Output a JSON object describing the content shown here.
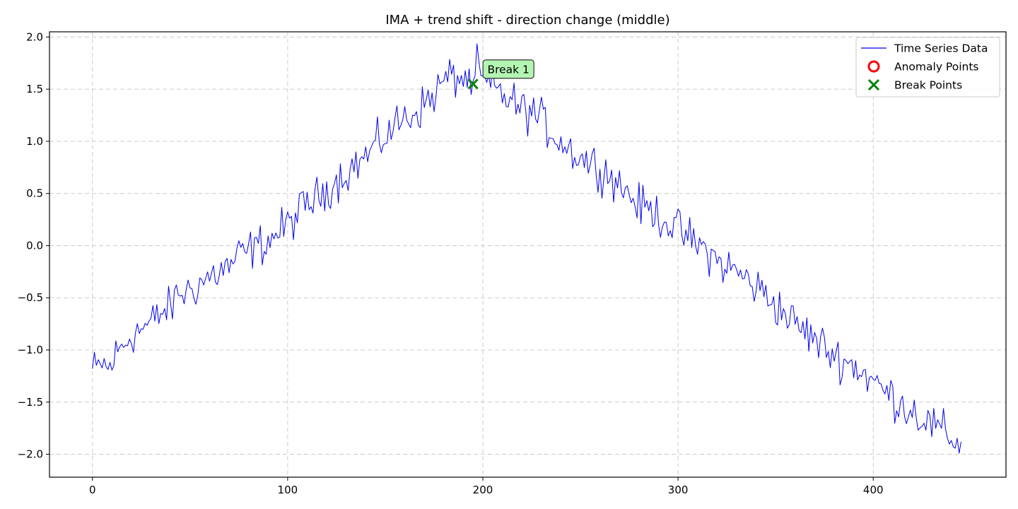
{
  "chart_data": {
    "type": "line",
    "title": "IMA + trend shift - direction change (middle)",
    "xlabel": "",
    "ylabel": "",
    "xlim": [
      -22,
      468
    ],
    "ylim": [
      -2.22,
      2.05
    ],
    "xticks": [
      0,
      100,
      200,
      300,
      400
    ],
    "yticks": [
      -2.0,
      -1.5,
      -1.0,
      -0.5,
      0.0,
      0.5,
      1.0,
      1.5,
      2.0
    ],
    "ytick_labels": [
      "−2.0",
      "−1.5",
      "−1.0",
      "−0.5",
      "0.0",
      "0.5",
      "1.0",
      "1.5",
      "2.0"
    ],
    "grid": true,
    "legend_position": "top-right",
    "colors": {
      "series": "#0000ee",
      "anomaly": "#ff0000",
      "break": "#008000",
      "annotation_fill": "#b3f5b3",
      "grid": "#cccccc"
    },
    "series": [
      {
        "name": "Time Series Data",
        "anchors_x": [
          0,
          2,
          5,
          8,
          12,
          16,
          20,
          25,
          30,
          35,
          40,
          44,
          48,
          52,
          56,
          60,
          65,
          70,
          75,
          80,
          85,
          90,
          95,
          100,
          105,
          110,
          115,
          120,
          125,
          130,
          135,
          140,
          145,
          150,
          155,
          160,
          165,
          170,
          175,
          180,
          185,
          190,
          195,
          197,
          200,
          205,
          210,
          215,
          220,
          225,
          230,
          235,
          240,
          245,
          250,
          255,
          260,
          265,
          270,
          275,
          280,
          285,
          290,
          295,
          300,
          305,
          310,
          315,
          320,
          325,
          330,
          335,
          340,
          344,
          348,
          352,
          356,
          360,
          365,
          370,
          375,
          380,
          385,
          390,
          395,
          400,
          405,
          410,
          415,
          420,
          425,
          430,
          435,
          440,
          445
        ],
        "anchors_y": [
          -1.18,
          -1.2,
          -1.12,
          -1.2,
          -1.05,
          -0.95,
          -0.85,
          -0.8,
          -0.75,
          -0.65,
          -0.6,
          -0.45,
          -0.45,
          -0.4,
          -0.35,
          -0.3,
          -0.25,
          -0.2,
          -0.1,
          -0.05,
          0.0,
          0.05,
          0.12,
          0.2,
          0.3,
          0.4,
          0.45,
          0.55,
          0.62,
          0.7,
          0.78,
          0.85,
          0.95,
          1.05,
          1.15,
          1.22,
          1.28,
          1.35,
          1.45,
          1.58,
          1.62,
          1.6,
          1.58,
          1.75,
          1.55,
          1.52,
          1.45,
          1.38,
          1.3,
          1.28,
          1.2,
          1.1,
          1.0,
          0.92,
          0.85,
          0.8,
          0.75,
          0.68,
          0.58,
          0.5,
          0.38,
          0.35,
          0.3,
          0.22,
          0.15,
          0.08,
          0.0,
          -0.05,
          -0.15,
          -0.2,
          -0.25,
          -0.32,
          -0.4,
          -0.45,
          -0.52,
          -0.6,
          -0.68,
          -0.75,
          -0.82,
          -0.9,
          -0.98,
          -1.05,
          -1.1,
          -1.15,
          -1.22,
          -1.3,
          -1.38,
          -1.45,
          -1.52,
          -1.58,
          -1.65,
          -1.72,
          -1.78,
          -1.85,
          -1.88
        ],
        "samples": 446,
        "noise_amplitude": 0.22
      }
    ],
    "anomaly_points": {
      "label": "Anomaly Points",
      "points": []
    },
    "break_points": {
      "label": "Break Points",
      "points": [
        {
          "x": 195,
          "y": 1.55
        }
      ]
    },
    "annotations": [
      {
        "text": "Break 1",
        "x": 195,
        "y": 1.55
      }
    ]
  }
}
